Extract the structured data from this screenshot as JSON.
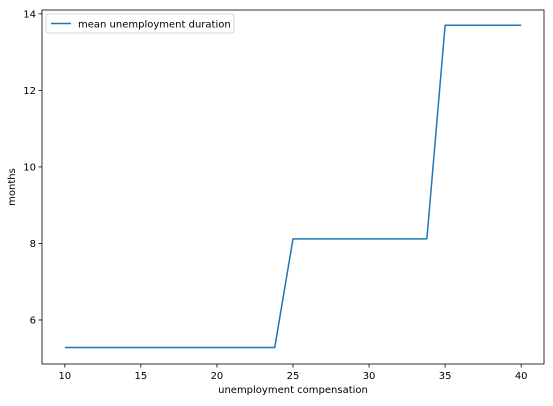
{
  "chart_data": {
    "type": "line",
    "title": "",
    "xlabel": "unemployment compensation",
    "ylabel": "months",
    "xlim": [
      8.5,
      41.5
    ],
    "ylim": [
      4.85,
      14.1
    ],
    "xticks": [
      10,
      15,
      20,
      25,
      30,
      35,
      40
    ],
    "yticks": [
      6,
      8,
      10,
      12,
      14
    ],
    "grid": false,
    "legend": {
      "position": "top-left"
    },
    "series": [
      {
        "name": "mean unemployment duration",
        "color": "#1f77b4",
        "x": [
          10,
          23.8,
          25,
          33.8,
          35,
          40
        ],
        "y": [
          5.28,
          5.28,
          8.12,
          8.12,
          13.7,
          13.7
        ]
      }
    ]
  }
}
